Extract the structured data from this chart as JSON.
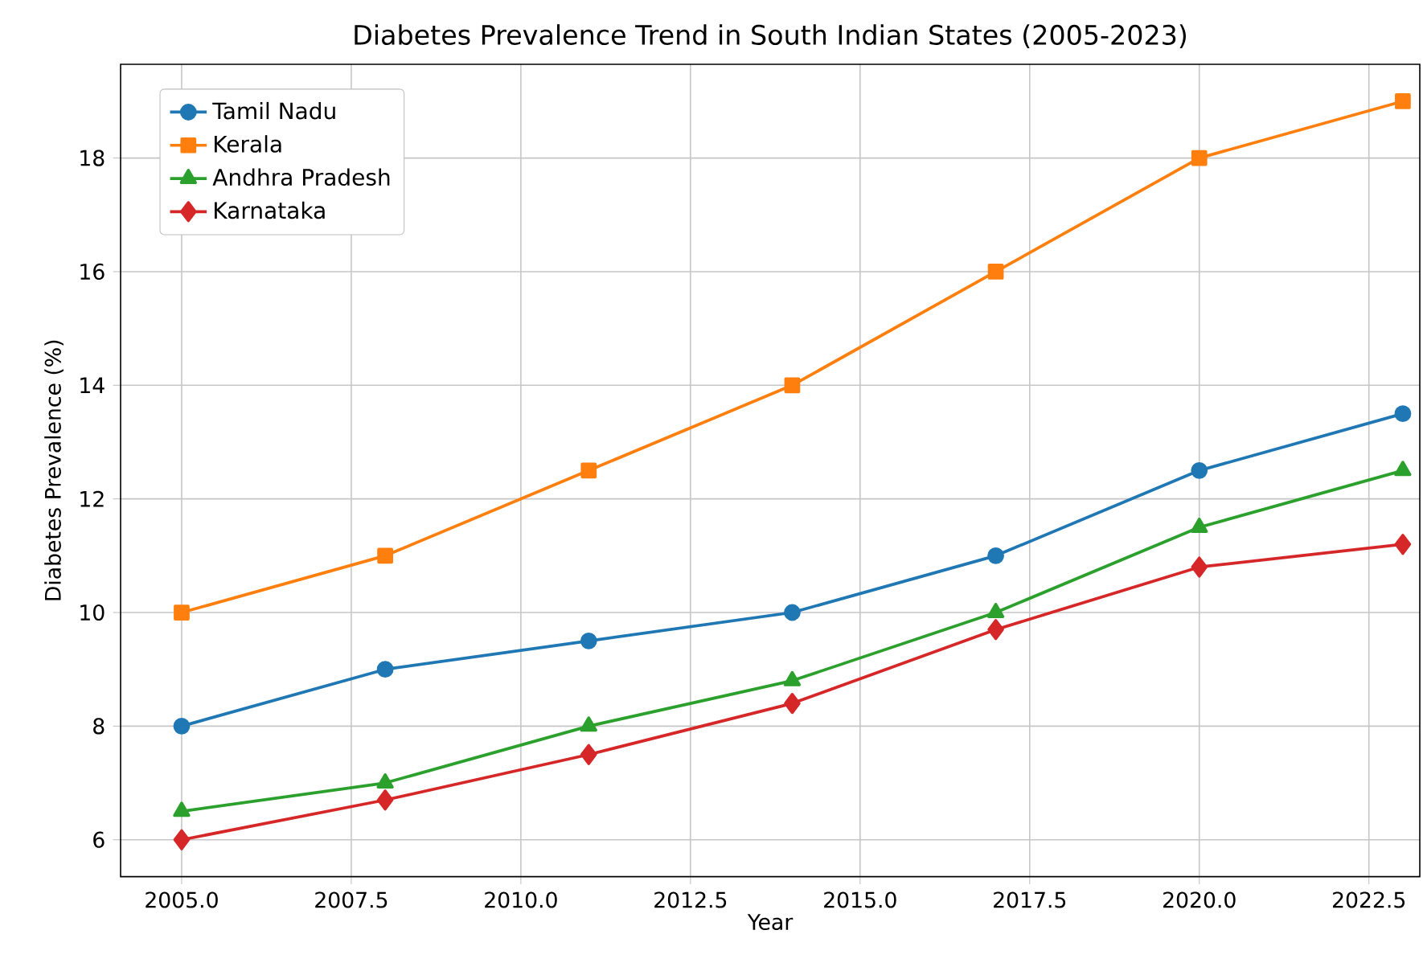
{
  "chart_data": {
    "type": "line",
    "title": "Diabetes Prevalence Trend in South Indian States (2005-2023)",
    "xlabel": "Year",
    "ylabel": "Diabetes Prevalence (%)",
    "x": [
      2005,
      2008,
      2011,
      2014,
      2017,
      2020,
      2023
    ],
    "series": [
      {
        "name": "Tamil Nadu",
        "color": "#1f77b4",
        "marker": "circle",
        "values": [
          8,
          9,
          9.5,
          10,
          11,
          12.5,
          13.5
        ]
      },
      {
        "name": "Kerala",
        "color": "#ff7f0e",
        "marker": "square",
        "values": [
          10,
          11,
          12.5,
          14,
          16,
          18,
          19
        ]
      },
      {
        "name": "Andhra Pradesh",
        "color": "#2ca02c",
        "marker": "triangle",
        "values": [
          6.5,
          7,
          8,
          8.8,
          10,
          11.5,
          12.5
        ]
      },
      {
        "name": "Karnataka",
        "color": "#d62728",
        "marker": "diamond",
        "values": [
          6,
          6.7,
          7.5,
          8.4,
          9.7,
          10.8,
          11.2
        ]
      }
    ],
    "xlim": [
      2004.1,
      2023.25
    ],
    "ylim": [
      5.35,
      19.65
    ],
    "xticks": [
      {
        "value": 2005,
        "label": "2005.0"
      },
      {
        "value": 2007.5,
        "label": "2007.5"
      },
      {
        "value": 2010,
        "label": "2010.0"
      },
      {
        "value": 2012.5,
        "label": "2012.5"
      },
      {
        "value": 2015,
        "label": "2015.0"
      },
      {
        "value": 2017.5,
        "label": "2017.5"
      },
      {
        "value": 2020,
        "label": "2020.0"
      },
      {
        "value": 2022.5,
        "label": "2022.5"
      }
    ],
    "yticks": [
      6,
      8,
      10,
      12,
      14,
      16,
      18
    ],
    "grid": true,
    "legend": "top left",
    "line_style": "solid"
  }
}
